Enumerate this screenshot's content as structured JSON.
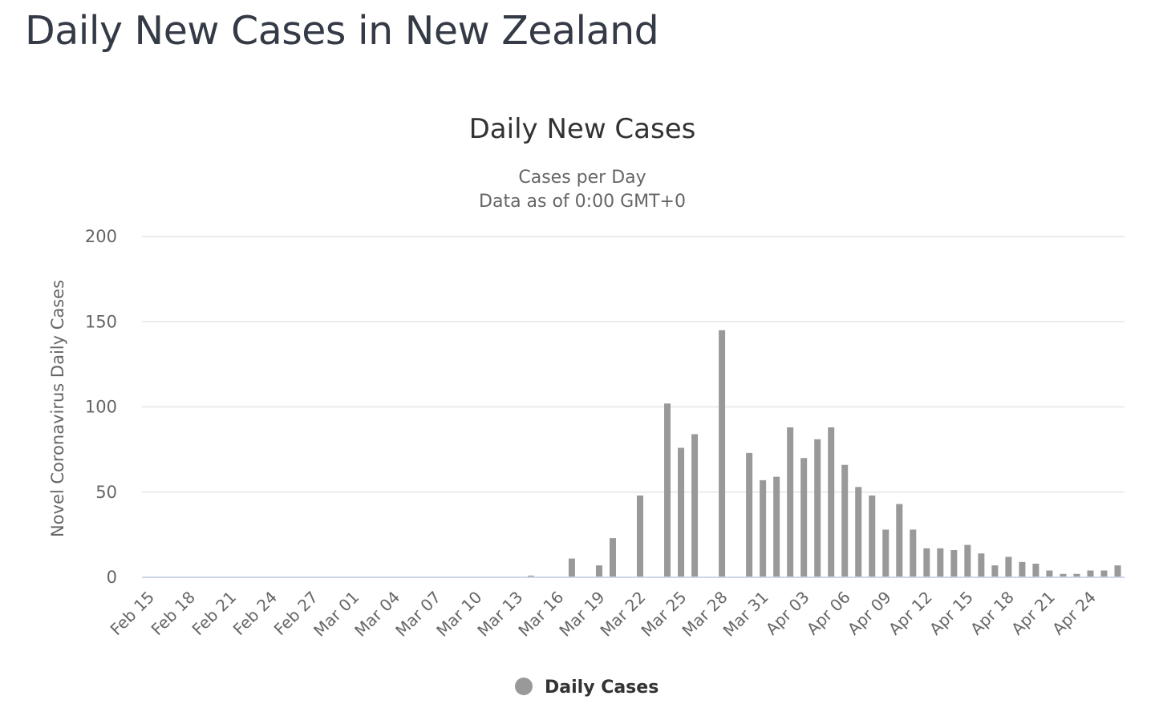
{
  "page": {
    "title": "Daily New Cases in New Zealand"
  },
  "colors": {
    "bar": "#999999",
    "gridline": "#e6e6e6",
    "baseline": "#ccd6eb",
    "title_text": "#333333",
    "axis_text": "#666666",
    "page_title_text": "#343a46"
  },
  "chart_data": {
    "type": "bar",
    "title": "Daily New Cases",
    "subtitle_lines": [
      "Cases per Day",
      "Data as of 0:00 GMT+0"
    ],
    "ylabel": "Novel Coronavirus Daily Cases",
    "xlabel": "",
    "ylim": [
      0,
      200
    ],
    "yticks": [
      0,
      50,
      100,
      150,
      200
    ],
    "grid": true,
    "legend_position": "bottom-center",
    "categories": [
      "Feb 15",
      "Feb 16",
      "Feb 17",
      "Feb 18",
      "Feb 19",
      "Feb 20",
      "Feb 21",
      "Feb 22",
      "Feb 23",
      "Feb 24",
      "Feb 25",
      "Feb 26",
      "Feb 27",
      "Feb 28",
      "Feb 29",
      "Mar 01",
      "Mar 02",
      "Mar 03",
      "Mar 04",
      "Mar 05",
      "Mar 06",
      "Mar 07",
      "Mar 08",
      "Mar 09",
      "Mar 10",
      "Mar 11",
      "Mar 12",
      "Mar 13",
      "Mar 14",
      "Mar 15",
      "Mar 16",
      "Mar 17",
      "Mar 18",
      "Mar 19",
      "Mar 20",
      "Mar 21",
      "Mar 22",
      "Mar 23",
      "Mar 24",
      "Mar 25",
      "Mar 26",
      "Mar 27",
      "Mar 28",
      "Mar 29",
      "Mar 30",
      "Mar 31",
      "Apr 01",
      "Apr 02",
      "Apr 03",
      "Apr 04",
      "Apr 05",
      "Apr 06",
      "Apr 07",
      "Apr 08",
      "Apr 09",
      "Apr 10",
      "Apr 11",
      "Apr 12",
      "Apr 13",
      "Apr 14",
      "Apr 15",
      "Apr 16",
      "Apr 17",
      "Apr 18",
      "Apr 19",
      "Apr 20",
      "Apr 21",
      "Apr 22",
      "Apr 23",
      "Apr 24",
      "Apr 25",
      "Apr 26"
    ],
    "tick_labels": [
      "Feb 15",
      "Feb 18",
      "Feb 21",
      "Feb 24",
      "Feb 27",
      "Mar 01",
      "Mar 04",
      "Mar 07",
      "Mar 10",
      "Mar 13",
      "Mar 16",
      "Mar 19",
      "Mar 22",
      "Mar 25",
      "Mar 28",
      "Mar 31",
      "Apr 03",
      "Apr 06",
      "Apr 09",
      "Apr 12",
      "Apr 15",
      "Apr 18",
      "Apr 21",
      "Apr 24"
    ],
    "series": [
      {
        "name": "Daily Cases",
        "values": [
          0,
          0,
          0,
          0,
          0,
          0,
          0,
          0,
          0,
          0,
          0,
          0,
          0,
          0,
          0,
          0,
          0,
          0,
          0,
          0,
          0,
          0,
          0,
          0,
          0,
          0,
          0,
          0,
          1,
          0,
          0,
          11,
          0,
          7,
          23,
          0,
          48,
          0,
          102,
          76,
          84,
          0,
          145,
          0,
          73,
          57,
          59,
          88,
          70,
          81,
          88,
          66,
          53,
          48,
          28,
          43,
          28,
          17,
          17,
          16,
          19,
          14,
          7,
          12,
          9,
          8,
          4,
          2,
          2,
          4,
          4,
          7
        ]
      }
    ]
  }
}
